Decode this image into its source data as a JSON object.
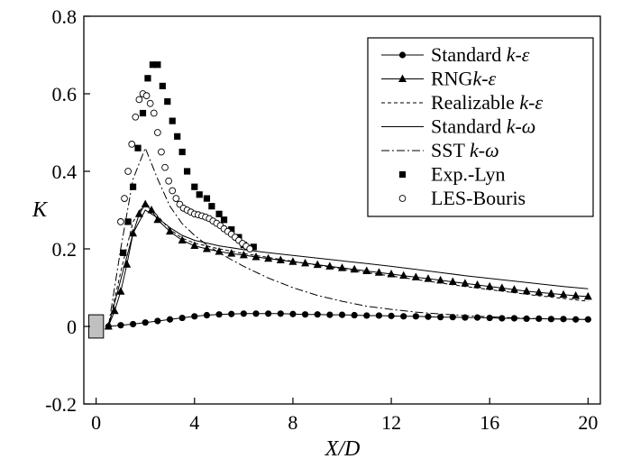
{
  "chart_data": {
    "type": "line",
    "title": "",
    "xlabel": "X/D",
    "ylabel": "K",
    "xlim": [
      -0.5,
      20.5
    ],
    "ylim": [
      -0.2,
      0.8
    ],
    "xticks": [
      0,
      4,
      8,
      12,
      16,
      20
    ],
    "yticks": [
      -0.2,
      0,
      0.2,
      0.4,
      0.6,
      0.8
    ],
    "xtick_labels": [
      "0",
      "4",
      "8",
      "12",
      "16",
      "20"
    ],
    "ytick_labels": [
      "-0.2",
      "0",
      "0.2",
      "0.4",
      "0.6",
      "0.8"
    ],
    "grid": false,
    "legend": "top-right",
    "body_marker": {
      "x": [
        -0.3,
        0.3
      ],
      "y": [
        -0.03,
        0.03
      ],
      "color": "#c0c0c0"
    },
    "series": [
      {
        "name": "Standard k-ε",
        "name_parts": [
          {
            "t": "Standard "
          },
          {
            "t": "k-ε",
            "i": true
          }
        ],
        "style": "solid",
        "marker": "circle-filled",
        "x": [
          0.5,
          1,
          1.5,
          2,
          2.5,
          3,
          3.5,
          4,
          4.5,
          5,
          5.5,
          6,
          6.5,
          7,
          7.5,
          8,
          8.5,
          9,
          9.5,
          10,
          10.5,
          11,
          11.5,
          12,
          12.5,
          13,
          13.5,
          14,
          14.5,
          15,
          15.5,
          16,
          16.5,
          17,
          17.5,
          18,
          18.5,
          19,
          19.5,
          20
        ],
        "y": [
          0.0,
          0.003,
          0.006,
          0.01,
          0.014,
          0.018,
          0.022,
          0.026,
          0.029,
          0.031,
          0.032,
          0.033,
          0.033,
          0.033,
          0.033,
          0.032,
          0.031,
          0.031,
          0.03,
          0.03,
          0.029,
          0.028,
          0.028,
          0.027,
          0.026,
          0.026,
          0.025,
          0.024,
          0.024,
          0.023,
          0.023,
          0.022,
          0.021,
          0.021,
          0.02,
          0.02,
          0.019,
          0.019,
          0.018,
          0.018
        ]
      },
      {
        "name": "RNG k-ε",
        "name_parts": [
          {
            "t": "RNG"
          },
          {
            "t": "k-ε",
            "i": true
          }
        ],
        "style": "solid",
        "marker": "triangle-filled",
        "x": [
          0.5,
          0.75,
          1,
          1.25,
          1.5,
          1.75,
          2,
          2.25,
          2.5,
          3,
          3.5,
          4,
          4.5,
          5,
          5.5,
          6,
          6.5,
          7,
          7.5,
          8,
          8.5,
          9,
          9.5,
          10,
          10.5,
          11,
          11.5,
          12,
          12.5,
          13,
          13.5,
          14,
          14.5,
          15,
          15.5,
          16,
          16.5,
          17,
          17.5,
          18,
          18.5,
          19,
          19.5,
          20
        ],
        "y": [
          0.0,
          0.04,
          0.09,
          0.16,
          0.24,
          0.29,
          0.315,
          0.3,
          0.275,
          0.245,
          0.222,
          0.208,
          0.2,
          0.193,
          0.188,
          0.184,
          0.179,
          0.175,
          0.171,
          0.167,
          0.163,
          0.159,
          0.155,
          0.151,
          0.147,
          0.143,
          0.139,
          0.135,
          0.131,
          0.127,
          0.123,
          0.119,
          0.115,
          0.111,
          0.107,
          0.103,
          0.099,
          0.095,
          0.091,
          0.088,
          0.085,
          0.082,
          0.079,
          0.077
        ]
      },
      {
        "name": "Realizable k-ε",
        "name_parts": [
          {
            "t": "Realizable "
          },
          {
            "t": "k-ε",
            "i": true
          }
        ],
        "style": "dashed",
        "marker": "none",
        "x": [
          0.5,
          1,
          1.5,
          2,
          2.5,
          3,
          3.5,
          4,
          5,
          6,
          7,
          8,
          9,
          10,
          11,
          12,
          13,
          14,
          15,
          16,
          17,
          18,
          19,
          20
        ],
        "y": [
          0.0,
          0.14,
          0.27,
          0.32,
          0.285,
          0.25,
          0.228,
          0.215,
          0.2,
          0.188,
          0.178,
          0.168,
          0.158,
          0.148,
          0.139,
          0.13,
          0.121,
          0.112,
          0.103,
          0.095,
          0.087,
          0.079,
          0.072,
          0.065
        ]
      },
      {
        "name": "Standard k-ω",
        "name_parts": [
          {
            "t": "Standard "
          },
          {
            "t": "k-ω",
            "i": true
          }
        ],
        "style": "solid",
        "marker": "none",
        "x": [
          0.5,
          1,
          1.5,
          2,
          2.5,
          3,
          3.5,
          4,
          5,
          6,
          7,
          8,
          9,
          10,
          11,
          12,
          13,
          14,
          15,
          16,
          17,
          18,
          19,
          20
        ],
        "y": [
          0.0,
          0.12,
          0.24,
          0.3,
          0.28,
          0.255,
          0.235,
          0.222,
          0.208,
          0.198,
          0.19,
          0.183,
          0.176,
          0.169,
          0.162,
          0.155,
          0.147,
          0.139,
          0.131,
          0.124,
          0.117,
          0.11,
          0.103,
          0.097
        ]
      },
      {
        "name": "SST k-ω",
        "name_parts": [
          {
            "t": "SST "
          },
          {
            "t": "k-ω",
            "i": true
          }
        ],
        "style": "dashdot",
        "marker": "none",
        "x": [
          0.5,
          1,
          1.5,
          2,
          2.5,
          3,
          3.5,
          4,
          4.5,
          5,
          5.5,
          6,
          7,
          8,
          9,
          10,
          11,
          12,
          13,
          14,
          15,
          16,
          17,
          18,
          19,
          20
        ],
        "y": [
          0.0,
          0.2,
          0.38,
          0.46,
          0.38,
          0.31,
          0.265,
          0.235,
          0.21,
          0.19,
          0.172,
          0.155,
          0.125,
          0.1,
          0.08,
          0.065,
          0.052,
          0.044,
          0.037,
          0.032,
          0.028,
          0.025,
          0.022,
          0.02,
          0.019,
          0.018
        ]
      },
      {
        "name": "Exp.-Lyn",
        "name_parts": [
          {
            "t": "Exp.-Lyn"
          }
        ],
        "style": "none",
        "marker": "square-filled",
        "x": [
          1.1,
          1.3,
          1.5,
          1.7,
          1.9,
          2.1,
          2.3,
          2.5,
          2.7,
          2.9,
          3.1,
          3.3,
          3.5,
          3.7,
          4.0,
          4.2,
          4.5,
          4.7,
          5.0,
          5.2,
          5.5,
          5.8,
          6.0,
          6.4
        ],
        "y": [
          0.19,
          0.27,
          0.36,
          0.46,
          0.55,
          0.64,
          0.675,
          0.675,
          0.62,
          0.58,
          0.53,
          0.49,
          0.45,
          0.4,
          0.36,
          0.34,
          0.33,
          0.31,
          0.29,
          0.275,
          0.25,
          0.23,
          0.21,
          0.205
        ]
      },
      {
        "name": "LES-Bouris",
        "name_parts": [
          {
            "t": "LES-Bouris"
          }
        ],
        "style": "none",
        "marker": "circle-open",
        "x": [
          1.0,
          1.15,
          1.3,
          1.45,
          1.6,
          1.75,
          1.9,
          2.05,
          2.2,
          2.35,
          2.5,
          2.65,
          2.8,
          2.95,
          3.1,
          3.25,
          3.4,
          3.55,
          3.7,
          3.85,
          4.0,
          4.15,
          4.3,
          4.45,
          4.6,
          4.75,
          4.9,
          5.05,
          5.2,
          5.35,
          5.5,
          5.65,
          5.8,
          5.95,
          6.1,
          6.25
        ],
        "y": [
          0.27,
          0.33,
          0.4,
          0.47,
          0.54,
          0.585,
          0.6,
          0.595,
          0.575,
          0.55,
          0.5,
          0.45,
          0.41,
          0.375,
          0.35,
          0.33,
          0.315,
          0.305,
          0.3,
          0.295,
          0.29,
          0.288,
          0.285,
          0.282,
          0.278,
          0.272,
          0.266,
          0.26,
          0.252,
          0.245,
          0.238,
          0.23,
          0.222,
          0.214,
          0.207,
          0.2
        ]
      }
    ]
  }
}
